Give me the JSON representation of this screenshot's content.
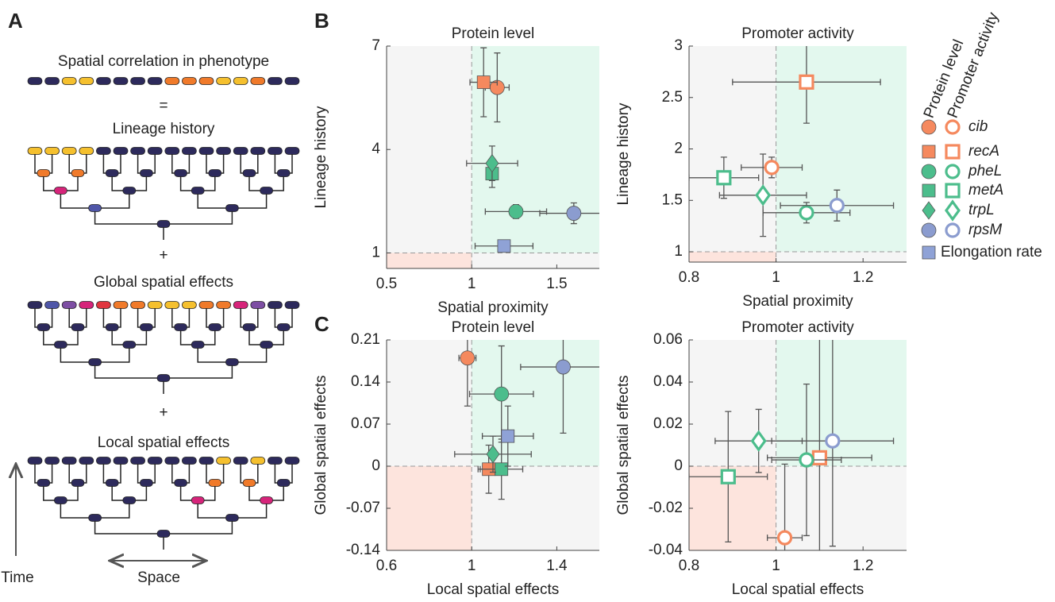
{
  "panel_labels": [
    "A",
    "B",
    "C"
  ],
  "diagram": {
    "rows": [
      "Spatial correlation in phenotype",
      "Lineage history",
      "Global spatial effects",
      "Local spatial effects"
    ],
    "operators": [
      "=",
      "+",
      "+"
    ],
    "time_label": "Time",
    "space_label": "Space"
  },
  "legend": {
    "headers": [
      "Protein level",
      "Promoter activity"
    ],
    "series": [
      {
        "name": "cib",
        "color": "#f5895e",
        "marker": "circle",
        "both": true
      },
      {
        "name": "recA",
        "color": "#f5895e",
        "marker": "square",
        "both": true
      },
      {
        "name": "pheL",
        "color": "#4cbd8c",
        "marker": "circle",
        "both": true
      },
      {
        "name": "metA",
        "color": "#4cbd8c",
        "marker": "square",
        "both": true
      },
      {
        "name": "trpL",
        "color": "#4cbd8c",
        "marker": "diamond",
        "both": true
      },
      {
        "name": "rpsM",
        "color": "#8b9ccf",
        "marker": "circle",
        "both": true
      },
      {
        "name": "Elongation rate",
        "color": "#8fa2d6",
        "marker": "square",
        "both": false
      }
    ]
  },
  "chart_data": [
    {
      "type": "scatter",
      "title": "Protein level",
      "x_label": "Spatial proximity",
      "y_label": "Lineage history",
      "filled": true,
      "xlim": [
        0.5,
        1.75
      ],
      "ylim": [
        0.55,
        7
      ],
      "xticks": [
        0.5,
        1,
        1.5
      ],
      "yticks": [
        1,
        4,
        7
      ],
      "reference": {
        "x": 1,
        "y": 1
      },
      "series": [
        {
          "x": [
            1.15
          ],
          "values": [
            5.8
          ],
          "xerr": [
            0.07
          ],
          "yerr": [
            1.0
          ]
        },
        {
          "x": [
            1.07
          ],
          "values": [
            5.95
          ],
          "xerr": [
            0.08
          ],
          "yerr": [
            1.0
          ]
        },
        {
          "x": [
            1.26
          ],
          "values": [
            2.2
          ],
          "xerr": [
            0.18
          ],
          "yerr": [
            0.2
          ]
        },
        {
          "x": [
            1.12
          ],
          "values": [
            3.3
          ],
          "xerr": [
            0.03
          ],
          "yerr": [
            0.4
          ]
        },
        {
          "x": [
            1.12
          ],
          "values": [
            3.6
          ],
          "xerr": [
            0.15
          ],
          "yerr": [
            0.5
          ]
        },
        {
          "x": [
            1.6
          ],
          "values": [
            2.15
          ],
          "xerr": [
            0.2
          ],
          "yerr": [
            0.3
          ]
        },
        {
          "x": [
            1.19
          ],
          "values": [
            1.2
          ],
          "xerr": [
            0.17
          ],
          "yerr": [
            0.05
          ]
        }
      ]
    },
    {
      "type": "scatter",
      "title": "Promoter activity",
      "x_label": "Spatial proximity",
      "y_label": "Lineage history",
      "filled": false,
      "xlim": [
        0.8,
        1.3
      ],
      "ylim": [
        0.9,
        3
      ],
      "xticks": [
        0.8,
        1,
        1.2
      ],
      "yticks": [
        1,
        1.5,
        2,
        2.5,
        3
      ],
      "reference": {
        "x": 1,
        "y": 1
      },
      "series": [
        {
          "x": [
            0.99
          ],
          "values": [
            1.82
          ],
          "xerr": [
            0.07
          ],
          "yerr": [
            0.1
          ]
        },
        {
          "x": [
            1.07
          ],
          "values": [
            2.65
          ],
          "xerr": [
            0.17
          ],
          "yerr": [
            0.4
          ]
        },
        {
          "x": [
            1.07
          ],
          "values": [
            1.38
          ],
          "xerr": [
            0.1
          ],
          "yerr": [
            0.1
          ]
        },
        {
          "x": [
            0.88
          ],
          "values": [
            1.72
          ],
          "xerr": [
            0.08
          ],
          "yerr": [
            0.2
          ]
        },
        {
          "x": [
            0.97
          ],
          "values": [
            1.55
          ],
          "xerr": [
            0.1
          ],
          "yerr": [
            0.4
          ]
        },
        {
          "x": [
            1.14
          ],
          "values": [
            1.45
          ],
          "xerr": [
            0.13
          ],
          "yerr": [
            0.15
          ]
        }
      ]
    },
    {
      "type": "scatter",
      "title": "Protein level",
      "x_label": "Local spatial effects",
      "y_label": "Global spatial effects",
      "filled": true,
      "xlim": [
        0.6,
        1.6
      ],
      "ylim": [
        -0.14,
        0.21
      ],
      "xticks": [
        0.6,
        1,
        1.4
      ],
      "yticks": [
        -0.14,
        -0.07,
        0,
        0.07,
        0.14,
        0.21
      ],
      "reference": {
        "x": 1,
        "y": 0
      },
      "series": [
        {
          "x": [
            0.98
          ],
          "values": [
            0.18
          ],
          "xerr": [
            0.04
          ],
          "yerr": [
            0.08
          ]
        },
        {
          "x": [
            1.08
          ],
          "values": [
            -0.005
          ],
          "xerr": [
            0.05
          ],
          "yerr": [
            0.04
          ]
        },
        {
          "x": [
            1.14
          ],
          "values": [
            0.12
          ],
          "xerr": [
            0.15
          ],
          "yerr": [
            0.08
          ]
        },
        {
          "x": [
            1.14
          ],
          "values": [
            -0.005
          ],
          "xerr": [
            0.1
          ],
          "yerr": [
            0.05
          ]
        },
        {
          "x": [
            1.1
          ],
          "values": [
            0.02
          ],
          "xerr": [
            0.18
          ],
          "yerr": [
            0.03
          ]
        },
        {
          "x": [
            1.43
          ],
          "values": [
            0.165
          ],
          "xerr": [
            0.2
          ],
          "yerr": [
            0.11
          ]
        },
        {
          "x": [
            1.17
          ],
          "values": [
            0.05
          ],
          "xerr": [
            0.12
          ],
          "yerr": [
            0.05
          ]
        }
      ]
    },
    {
      "type": "scatter",
      "title": "Promoter activity",
      "x_label": "Local spatial effects",
      "y_label": "Global spatial effects",
      "filled": false,
      "xlim": [
        0.8,
        1.3
      ],
      "ylim": [
        -0.04,
        0.06
      ],
      "xticks": [
        0.8,
        1,
        1.2
      ],
      "yticks": [
        -0.04,
        -0.02,
        0,
        0.02,
        0.04,
        0.06
      ],
      "reference": {
        "x": 1,
        "y": 0
      },
      "series": [
        {
          "x": [
            1.02
          ],
          "values": [
            -0.034
          ],
          "xerr": [
            0.04
          ],
          "yerr": [
            0.035
          ]
        },
        {
          "x": [
            1.1
          ],
          "values": [
            0.004
          ],
          "xerr": [
            0.12
          ],
          "yerr": [
            0.06
          ]
        },
        {
          "x": [
            1.07
          ],
          "values": [
            0.003
          ],
          "xerr": [
            0.08
          ],
          "yerr": [
            0.036
          ]
        },
        {
          "x": [
            0.89
          ],
          "values": [
            -0.005
          ],
          "xerr": [
            0.09
          ],
          "yerr": [
            0.031
          ]
        },
        {
          "x": [
            0.96
          ],
          "values": [
            0.012
          ],
          "xerr": [
            0.1
          ],
          "yerr": [
            0.015
          ]
        },
        {
          "x": [
            1.13
          ],
          "values": [
            0.012
          ],
          "xerr": [
            0.14
          ],
          "yerr": [
            0.05
          ]
        }
      ]
    }
  ]
}
